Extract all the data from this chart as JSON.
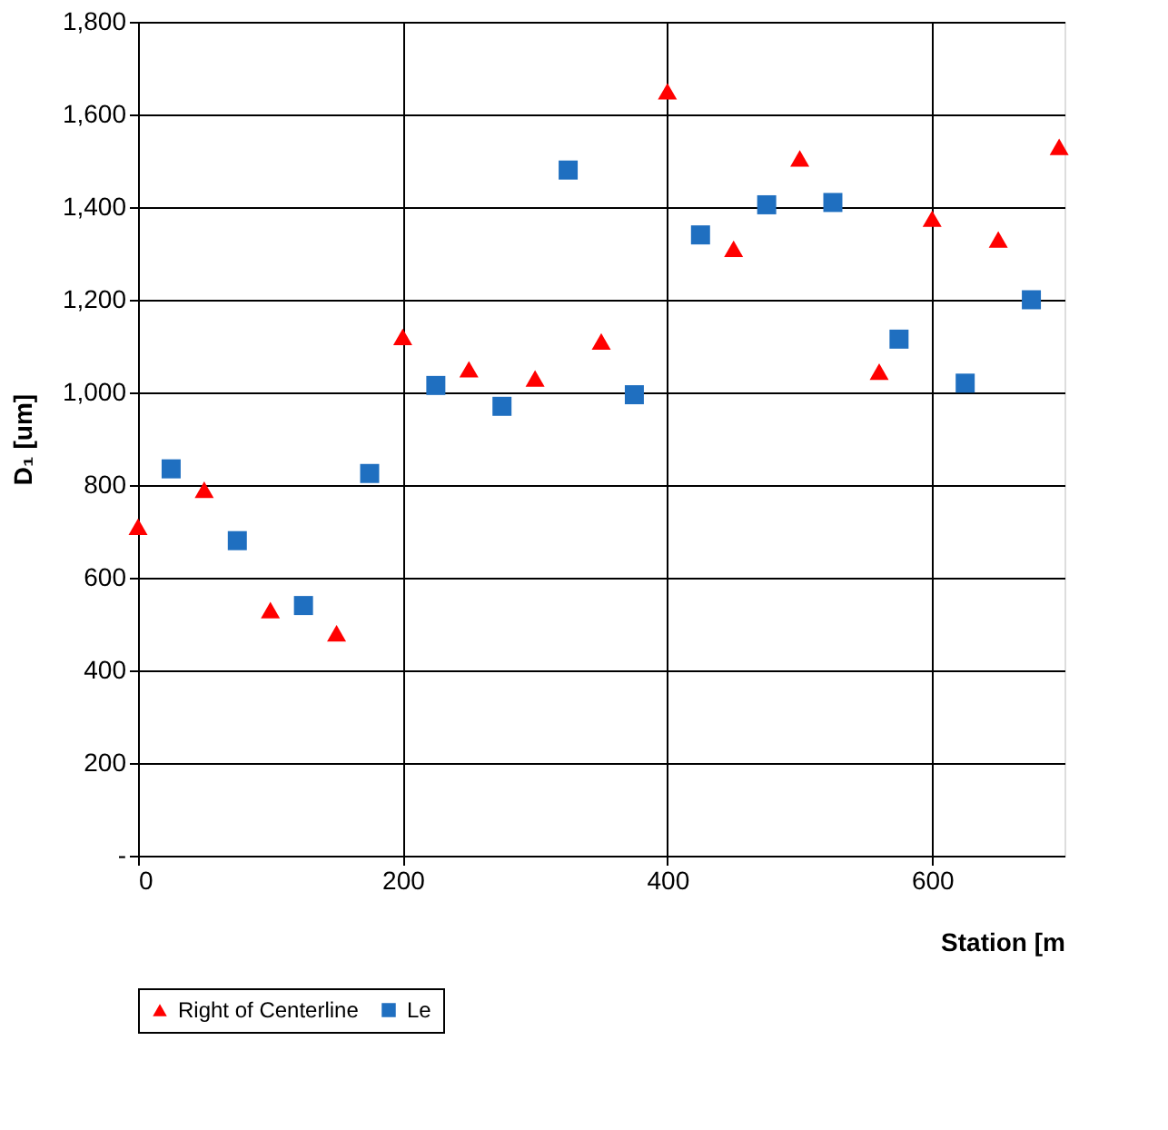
{
  "chart_data": {
    "type": "scatter",
    "xlabel": "Station [m",
    "ylabel": "D₁ [um]",
    "xlim": [
      0,
      700
    ],
    "xticks": [
      0,
      200,
      400,
      600
    ],
    "ylim": [
      0,
      1800
    ],
    "yticks": [
      {
        "value": 0,
        "label": "-"
      },
      {
        "value": 200,
        "label": "200"
      },
      {
        "value": 400,
        "label": "400"
      },
      {
        "value": 600,
        "label": "600"
      },
      {
        "value": 800,
        "label": "800"
      },
      {
        "value": 1000,
        "label": "1,000"
      },
      {
        "value": 1200,
        "label": "1,200"
      },
      {
        "value": 1400,
        "label": "1,400"
      },
      {
        "value": 1600,
        "label": "1,600"
      },
      {
        "value": 1800,
        "label": "1,800"
      }
    ],
    "grid": true,
    "legend": "bottom",
    "series": [
      {
        "name": "Right of Centerline",
        "color": "#ff0000",
        "marker": "triangle",
        "x": [
          0,
          50,
          100,
          150,
          200,
          250,
          300,
          350,
          400,
          450,
          500,
          560,
          600,
          650,
          696
        ],
        "values": [
          710,
          790,
          530,
          480,
          1120,
          1050,
          1030,
          1110,
          1650,
          1310,
          1505,
          1045,
          1375,
          1330,
          1530
        ]
      },
      {
        "name": "Le",
        "color": "#1f6fc0",
        "marker": "square",
        "x": [
          25,
          75,
          125,
          175,
          225,
          275,
          325,
          375,
          425,
          475,
          525,
          575,
          625,
          675
        ],
        "values": [
          835,
          680,
          540,
          825,
          1015,
          970,
          1480,
          995,
          1340,
          1405,
          1410,
          1115,
          1020,
          1200
        ]
      }
    ]
  }
}
